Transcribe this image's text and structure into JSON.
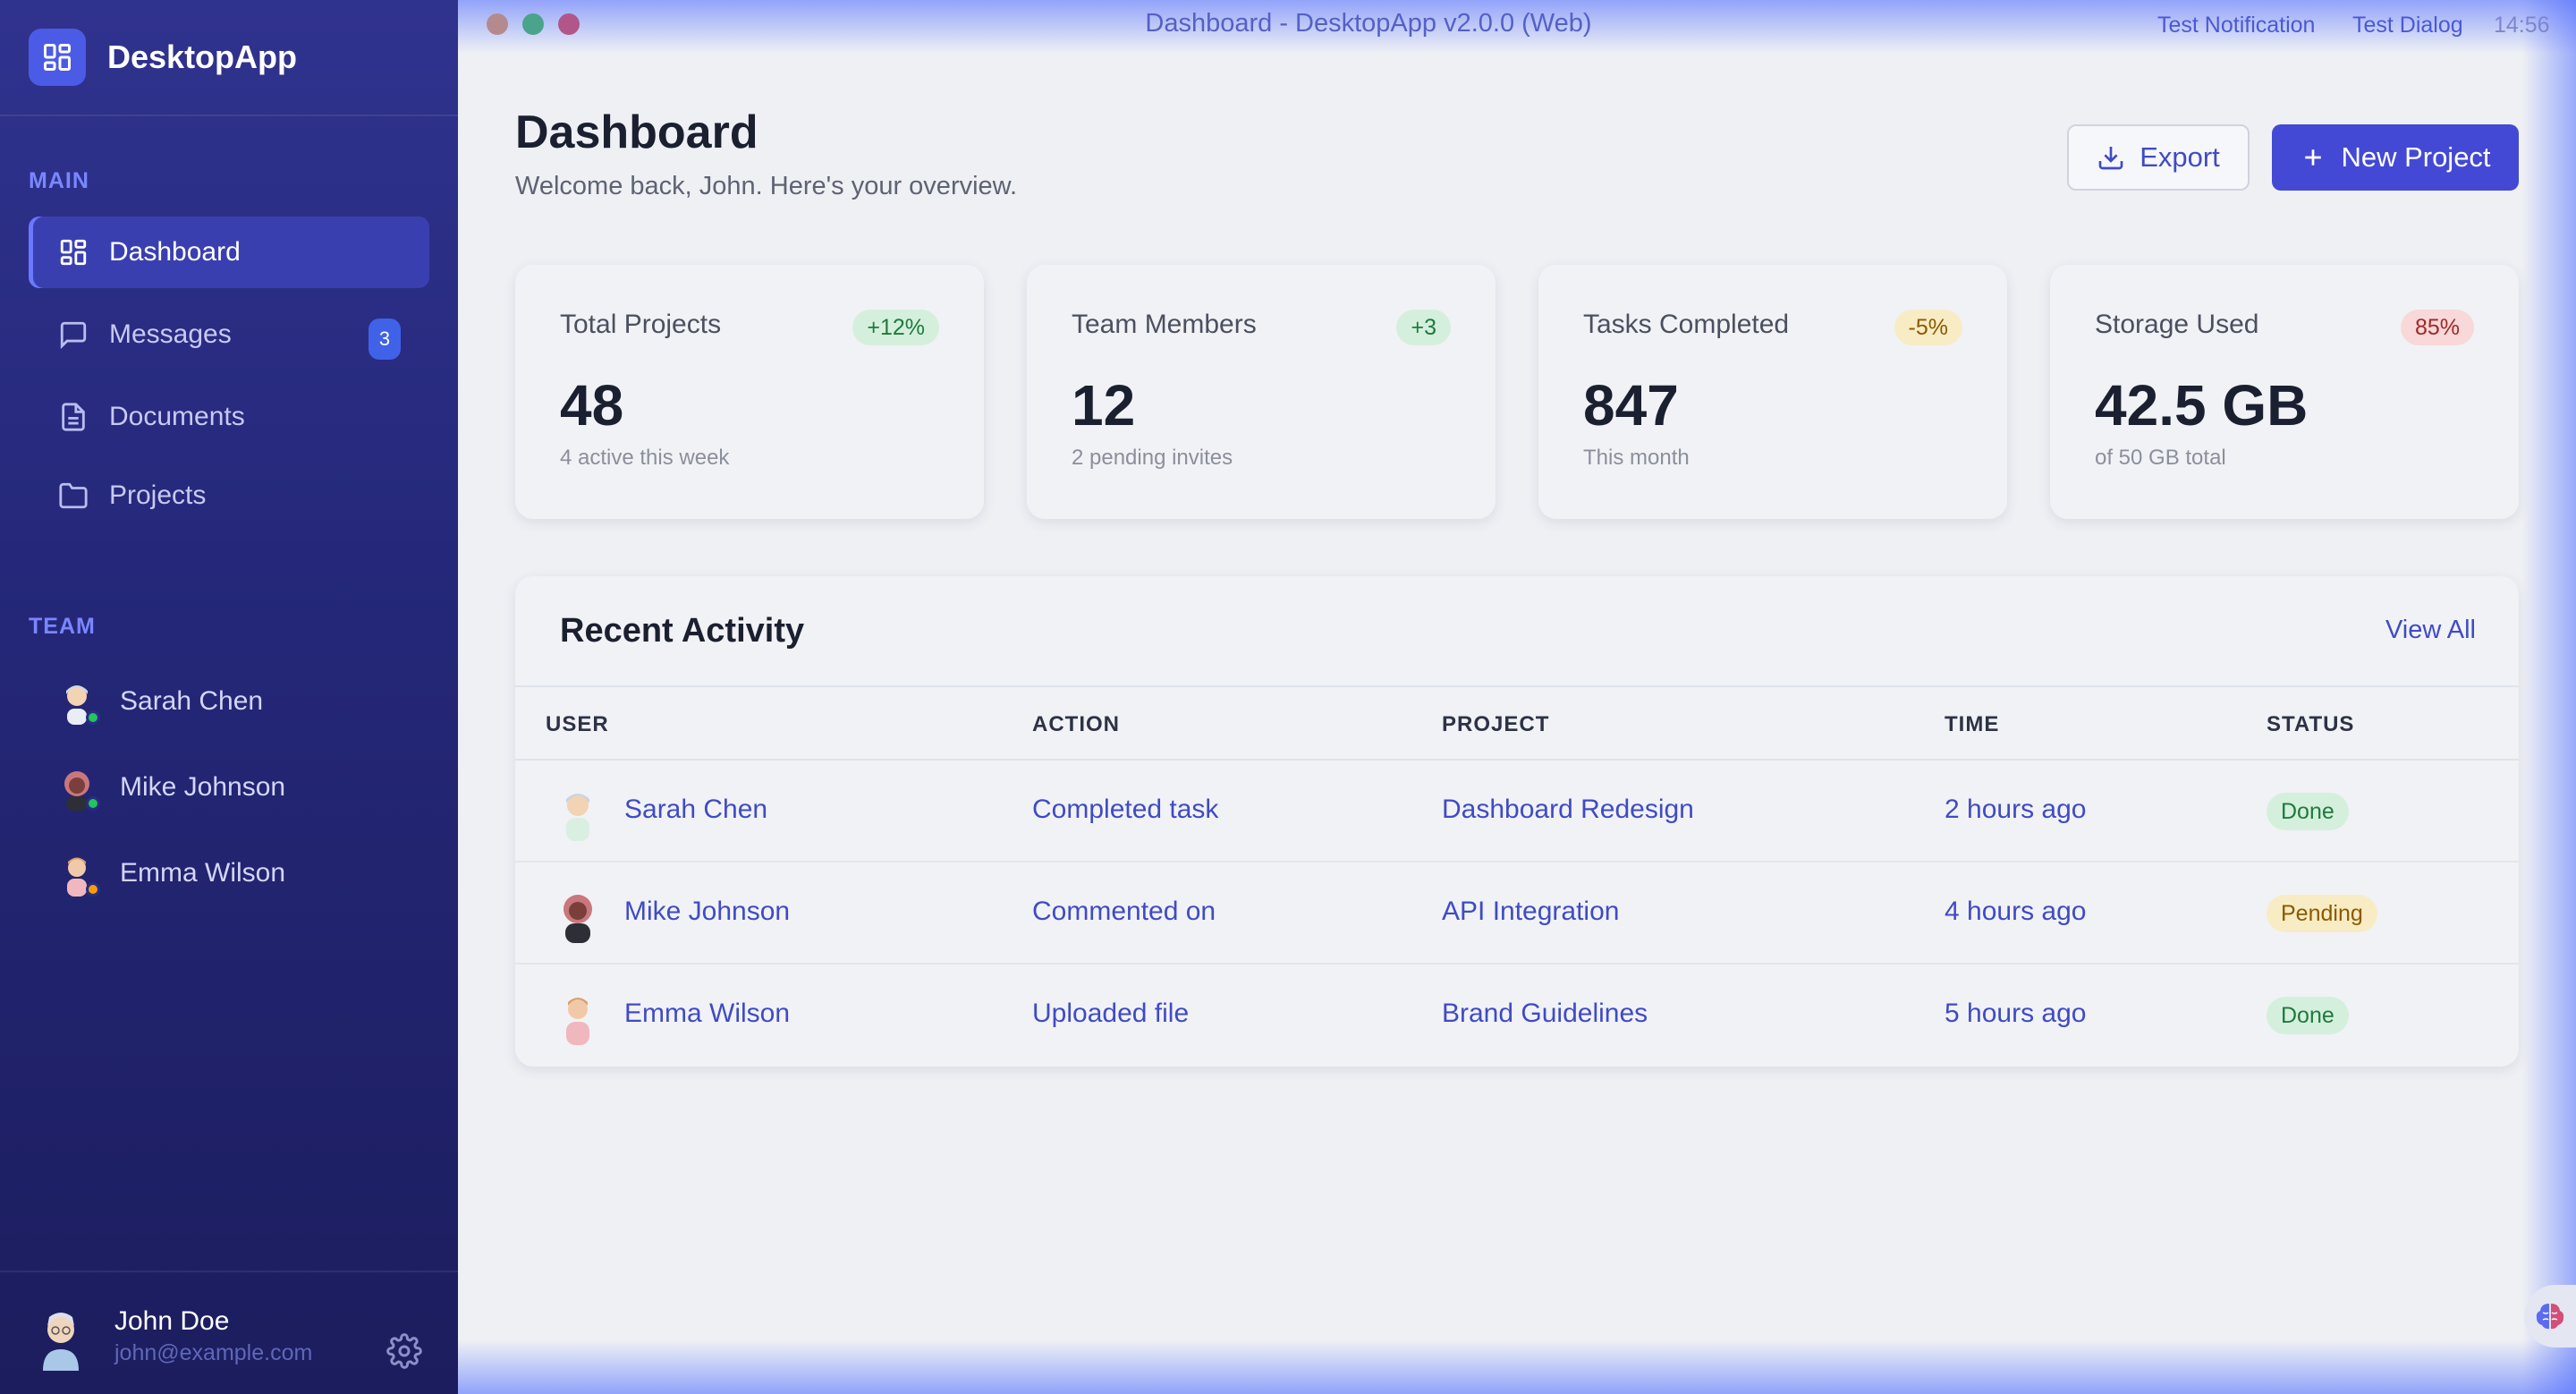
{
  "app": {
    "name": "DesktopApp",
    "window_title": "Dashboard - DesktopApp v2.0.0 (Web)"
  },
  "titlebar": {
    "test_notification": "Test Notification",
    "test_dialog": "Test Dialog",
    "clock": "14:56"
  },
  "sidebar": {
    "main_label": "MAIN",
    "items": [
      {
        "label": "Dashboard",
        "icon": "dashboard-icon",
        "active": true
      },
      {
        "label": "Messages",
        "icon": "message-icon",
        "badge": "3"
      },
      {
        "label": "Documents",
        "icon": "document-icon"
      },
      {
        "label": "Projects",
        "icon": "folder-icon"
      }
    ],
    "team_label": "TEAM",
    "team": [
      {
        "name": "Sarah Chen",
        "status_color": "#22c55e"
      },
      {
        "name": "Mike Johnson",
        "status_color": "#22c55e"
      },
      {
        "name": "Emma Wilson",
        "status_color": "#f59e0b"
      }
    ],
    "user": {
      "name": "John Doe",
      "email": "john@example.com"
    }
  },
  "header": {
    "title": "Dashboard",
    "subtitle": "Welcome back, John. Here's your overview.",
    "export_label": "Export",
    "new_project_label": "New Project"
  },
  "stats": [
    {
      "label": "Total Projects",
      "value": "48",
      "sub": "4 active this week",
      "change": "+12%",
      "tone": "green"
    },
    {
      "label": "Team Members",
      "value": "12",
      "sub": "2 pending invites",
      "change": "+3",
      "tone": "green"
    },
    {
      "label": "Tasks Completed",
      "value": "847",
      "sub": "This month",
      "change": "-5%",
      "tone": "yellow"
    },
    {
      "label": "Storage Used",
      "value": "42.5 GB",
      "sub": "of 50 GB total",
      "change": "85%",
      "tone": "red"
    }
  ],
  "activity": {
    "title": "Recent Activity",
    "view_all": "View All",
    "columns": [
      "USER",
      "ACTION",
      "PROJECT",
      "TIME",
      "STATUS"
    ],
    "rows": [
      {
        "user": "Sarah Chen",
        "action": "Completed task",
        "project": "Dashboard Redesign",
        "time": "2 hours ago",
        "status": "Done"
      },
      {
        "user": "Mike Johnson",
        "action": "Commented on",
        "project": "API Integration",
        "time": "4 hours ago",
        "status": "Pending"
      },
      {
        "user": "Emma Wilson",
        "action": "Uploaded file",
        "project": "Brand Guidelines",
        "time": "5 hours ago",
        "status": "Done"
      }
    ]
  },
  "colors": {
    "accent": "#4349d4",
    "sidebar": "#25287a",
    "done": "#1f7a3d",
    "pending": "#8a5a00"
  }
}
